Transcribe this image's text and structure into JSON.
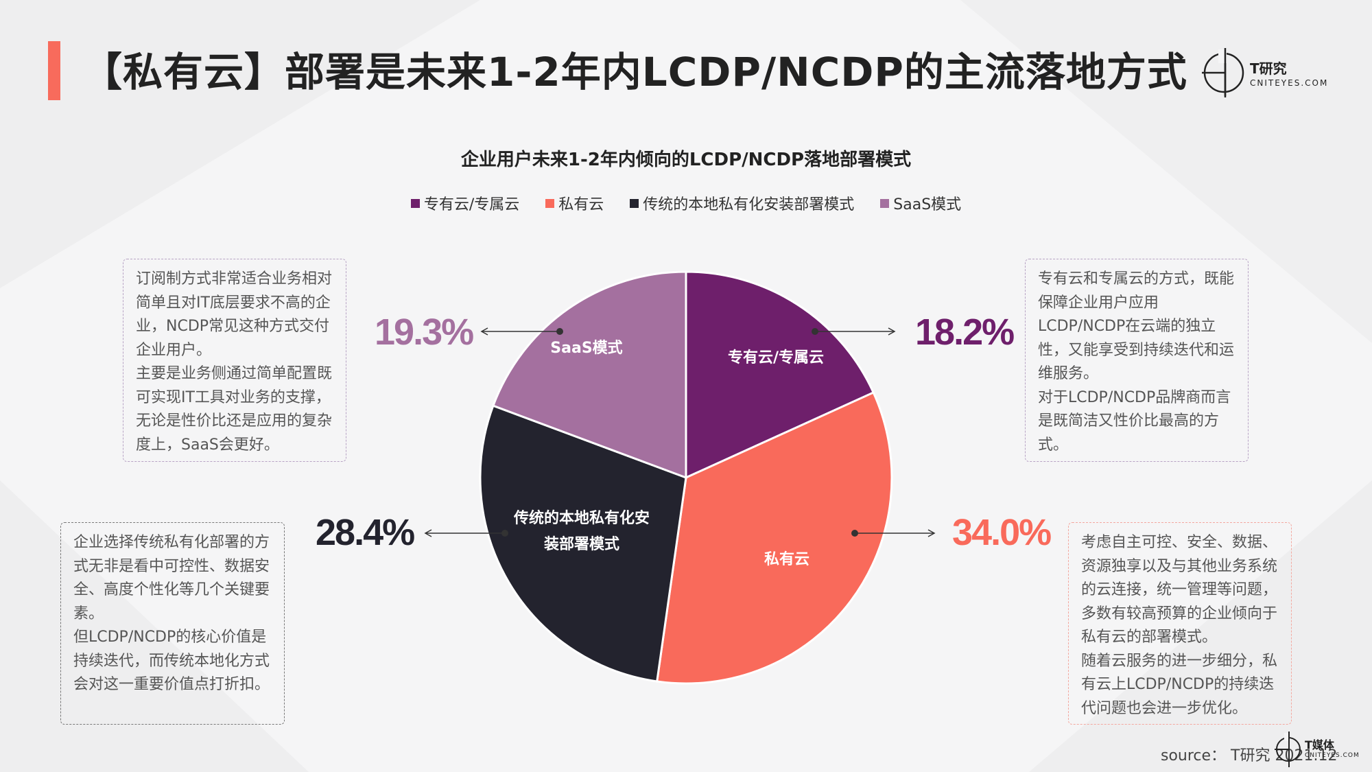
{
  "page": {
    "title": "【私有云】部署是未来1-2年内LCDP/NCDP的主流落地方式",
    "logo": {
      "name": "T研究",
      "sub": "CNITEYES.COM"
    },
    "source": "source： T研究 2021.12",
    "footer_logo": {
      "name": "T媒体",
      "sub": "CNITEYES.COM"
    }
  },
  "chart_data": {
    "type": "pie",
    "title": "企业用户未来1-2年内倾向的LCDP/NCDP落地部署模式",
    "legend_position": "top",
    "legend": [
      "专有云/专属云",
      "私有云",
      "传统的本地私有化安装部署模式",
      "SaaS模式"
    ],
    "slices": [
      {
        "name": "专有云/专属云",
        "label": "专有云/专属云",
        "value": 18.2,
        "display": "18.2%",
        "color": "#6e1f6b"
      },
      {
        "name": "私有云",
        "label": "私有云",
        "value": 34.0,
        "display": "34.0%",
        "color": "#f96a5b"
      },
      {
        "name": "传统的本地私有化安装部署模式",
        "label": "传统的本地私有化安装部署模式",
        "value": 28.4,
        "display": "28.4%",
        "color": "#23232e"
      },
      {
        "name": "SaaS模式",
        "label": "SaaS模式",
        "value": 19.3,
        "display": "SaaS模式",
        "color": "#a4709f"
      }
    ],
    "percent_labels": {
      "saas": "19.3%",
      "private_dedicated": "18.2%",
      "traditional": "28.4%",
      "private_cloud": "34.0%"
    },
    "slice_labels": {
      "private_dedicated": "专有云/专属云",
      "saas": "SaaS模式",
      "traditional_line1": "传统的本地私有化安",
      "traditional_line2": "装部署模式",
      "private_cloud": "私有云"
    },
    "colors": {
      "private_dedicated": "#6e1f6b",
      "private_cloud": "#f96a5b",
      "traditional": "#23232e",
      "saas": "#a4709f"
    }
  },
  "notes": {
    "saas": [
      "订阅制方式非常适合业务相对简单且对IT底层要求不高的企业，NCDP常见这种方式交付企业用户。",
      "主要是业务侧通过简单配置既可实现IT工具对业务的支撑，无论是性价比还是应用的复杂度上，SaaS会更好。"
    ],
    "private_dedicated": [
      "专有云和专属云的方式，既能保障企业用户应用LCDP/NCDP在云端的独立性，又能享受到持续迭代和运维服务。",
      "对于LCDP/NCDP品牌商而言是既简洁又性价比最高的方式。"
    ],
    "traditional": [
      "企业选择传统私有化部署的方式无非是看中可控性、数据安全、高度个性化等几个关键要素。",
      "但LCDP/NCDP的核心价值是持续迭代，而传统本地化方式会对这一重要价值点打折扣。"
    ],
    "private_cloud": [
      "考虑自主可控、安全、数据、资源独享以及与其他业务系统的云连接，统一管理等问题，多数有较高预算的企业倾向于私有云的部署模式。",
      "随着云服务的进一步细分，私有云上LCDP/NCDP的持续迭代问题也会进一步优化。"
    ]
  }
}
